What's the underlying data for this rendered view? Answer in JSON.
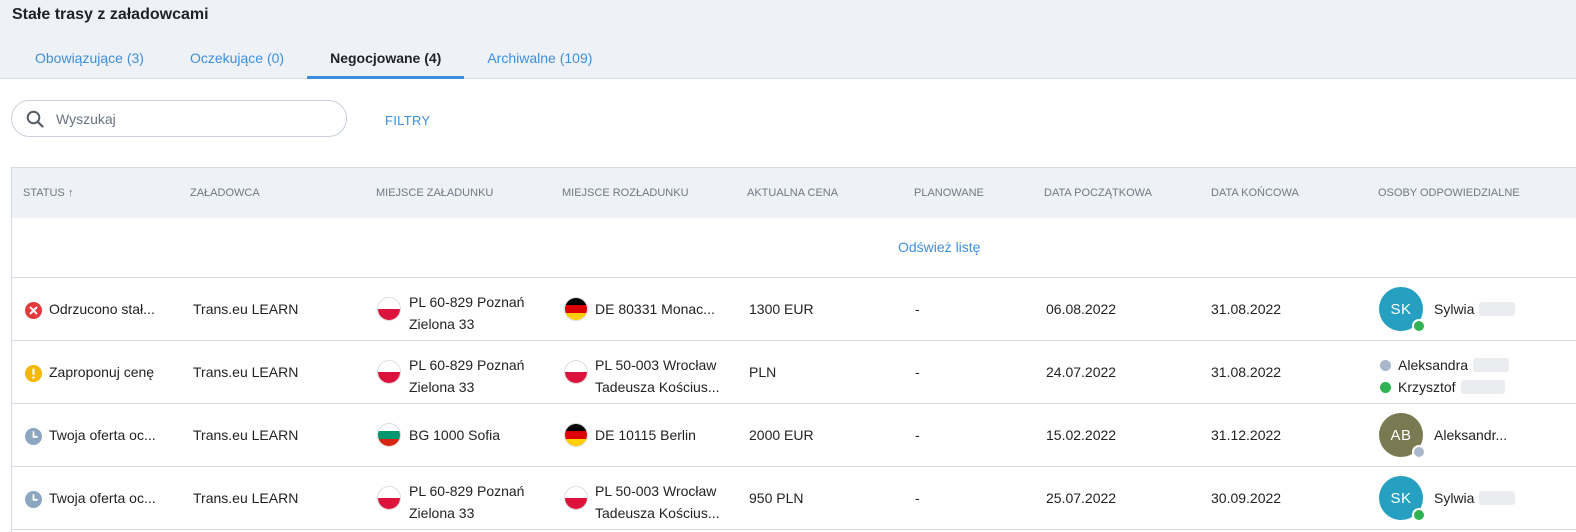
{
  "page_title": "Stałe trasy z załadowcami",
  "tabs": [
    {
      "label": "Obowiązujące (3)"
    },
    {
      "label": "Oczekujące (0)"
    },
    {
      "label": "Negocjowane (4)"
    },
    {
      "label": "Archiwalne (109)"
    }
  ],
  "search": {
    "placeholder": "Wyszukaj"
  },
  "filters_label": "FILTRY",
  "columns": {
    "status": "STATUS",
    "shipper": "ZAŁADOWCA",
    "loading": "MIEJSCE ZAŁADUNKU",
    "unloading": "MIEJSCE ROZŁADUNKU",
    "price": "AKTUALNA CENA",
    "planned": "PLANOWANE",
    "start": "DATA POCZĄTKOWA",
    "end": "DATA KOŃCOWA",
    "people": "OSOBY ODPOWIEDZIALNE"
  },
  "sort_arrow": "↑",
  "refresh_label": "Odśwież listę",
  "rows": [
    {
      "status": "Odrzucono stał...",
      "shipper": "Trans.eu LEARN",
      "loading": {
        "line1": "PL 60-829 Poznań",
        "line2": "Zielona 33"
      },
      "unloading": {
        "line1": "DE 80331 Monac..."
      },
      "price": "1300 EUR",
      "planned": "-",
      "start": "06.08.2022",
      "end": "31.08.2022",
      "avatar": {
        "initials": "SK",
        "name": "Sylwia"
      }
    },
    {
      "status": "Zaproponuj cenę",
      "shipper": "Trans.eu LEARN",
      "loading": {
        "line1": "PL 60-829 Poznań",
        "line2": "Zielona 33"
      },
      "unloading": {
        "line1": "PL 50-003 Wrocław",
        "line2": "Tadeusza Kościus..."
      },
      "price": "PLN",
      "planned": "-",
      "start": "24.07.2022",
      "end": "31.08.2022",
      "people": [
        "Aleksandra",
        "Krzysztof"
      ]
    },
    {
      "status": "Twoja oferta oc...",
      "shipper": "Trans.eu LEARN",
      "loading": {
        "line1": "BG 1000 Sofia"
      },
      "unloading": {
        "line1": "DE 10115 Berlin"
      },
      "price": "2000 EUR",
      "planned": "-",
      "start": "15.02.2022",
      "end": "31.12.2022",
      "avatar": {
        "initials": "AB",
        "name": "Aleksandr..."
      }
    },
    {
      "status": "Twoja oferta oc...",
      "shipper": "Trans.eu LEARN",
      "loading": {
        "line1": "PL 60-829 Poznań",
        "line2": "Zielona 33"
      },
      "unloading": {
        "line1": "PL 50-003 Wrocław",
        "line2": "Tadeusza Kościus..."
      },
      "price": "950 PLN",
      "planned": "-",
      "start": "25.07.2022",
      "end": "30.09.2022",
      "avatar": {
        "initials": "SK",
        "name": "Sylwia"
      }
    }
  ],
  "colors": {
    "accent": "#3d8fe0",
    "rejected": "#e5383b",
    "warning": "#f5b700",
    "pending": "#8aa6c1",
    "online": "#2fb352",
    "away": "#a9b8cc",
    "avatar_teal": "#26a0c1",
    "avatar_olive": "#7a7a52"
  },
  "icons": {
    "search": "search-icon",
    "rejected": "x-circle-icon",
    "warning": "exclamation-circle-icon",
    "pending": "clock-icon"
  }
}
